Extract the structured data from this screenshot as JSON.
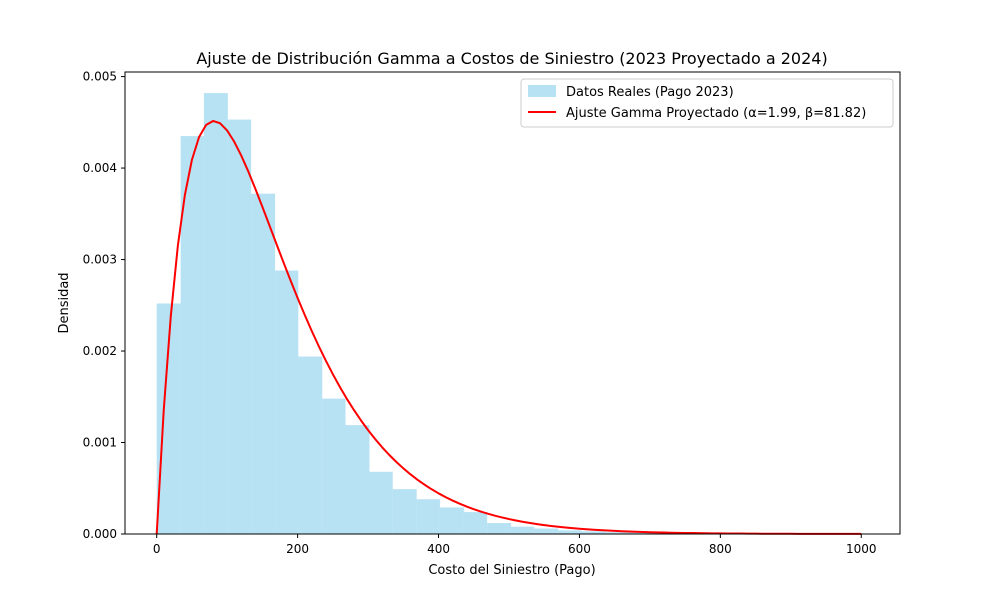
{
  "chart_data": {
    "type": "bar",
    "title": "Ajuste de Distribución Gamma a Costos de Siniestro (2023 Proyectado a 2024)",
    "xlabel": "Costo del Siniestro (Pago)",
    "ylabel": "Densidad",
    "xlim": [
      -45,
      1055
    ],
    "ylim": [
      0,
      0.00505
    ],
    "x_ticks": [
      0,
      200,
      400,
      600,
      800,
      1000
    ],
    "y_ticks": [
      0.0,
      0.001,
      0.002,
      0.003,
      0.004,
      0.005
    ],
    "x_tick_labels": [
      "0",
      "200",
      "400",
      "600",
      "800",
      "1000"
    ],
    "y_tick_labels": [
      "0.000",
      "0.001",
      "0.002",
      "0.003",
      "0.004",
      "0.005"
    ],
    "grid": false,
    "legend_position": "top-right",
    "series": [
      {
        "name": "Datos Reales (Pago 2023)",
        "type": "histogram",
        "color": "#87ceeb",
        "bins": [
          {
            "x0": 0,
            "x1": 34,
            "y": 0.00252
          },
          {
            "x0": 34,
            "x1": 67,
            "y": 0.00435
          },
          {
            "x0": 67,
            "x1": 101,
            "y": 0.00482
          },
          {
            "x0": 101,
            "x1": 134,
            "y": 0.00453
          },
          {
            "x0": 134,
            "x1": 168,
            "y": 0.00372
          },
          {
            "x0": 168,
            "x1": 201,
            "y": 0.00288
          },
          {
            "x0": 201,
            "x1": 235,
            "y": 0.00194
          },
          {
            "x0": 235,
            "x1": 268,
            "y": 0.00148
          },
          {
            "x0": 268,
            "x1": 302,
            "y": 0.00119
          },
          {
            "x0": 302,
            "x1": 335,
            "y": 0.00068
          },
          {
            "x0": 335,
            "x1": 369,
            "y": 0.00049
          },
          {
            "x0": 369,
            "x1": 402,
            "y": 0.00038
          },
          {
            "x0": 402,
            "x1": 436,
            "y": 0.00029
          },
          {
            "x0": 436,
            "x1": 469,
            "y": 0.00024
          },
          {
            "x0": 469,
            "x1": 503,
            "y": 0.00012
          },
          {
            "x0": 503,
            "x1": 536,
            "y": 8e-05
          },
          {
            "x0": 536,
            "x1": 570,
            "y": 6e-05
          },
          {
            "x0": 570,
            "x1": 603,
            "y": 4e-05
          },
          {
            "x0": 603,
            "x1": 637,
            "y": 3e-05
          },
          {
            "x0": 637,
            "x1": 670,
            "y": 2e-05
          },
          {
            "x0": 670,
            "x1": 704,
            "y": 2e-05
          },
          {
            "x0": 704,
            "x1": 737,
            "y": 1e-05
          },
          {
            "x0": 737,
            "x1": 771,
            "y": 1e-05
          },
          {
            "x0": 771,
            "x1": 804,
            "y": 1e-05
          },
          {
            "x0": 804,
            "x1": 838,
            "y": 1e-05
          },
          {
            "x0": 838,
            "x1": 871,
            "y": 1e-05
          }
        ]
      },
      {
        "name": "Ajuste Gamma Proyectado (α=1.99, β=81.82)",
        "type": "line",
        "color": "#ff0000",
        "alpha": 1.99,
        "beta": 81.82,
        "x_range": [
          0,
          1000
        ]
      }
    ]
  }
}
